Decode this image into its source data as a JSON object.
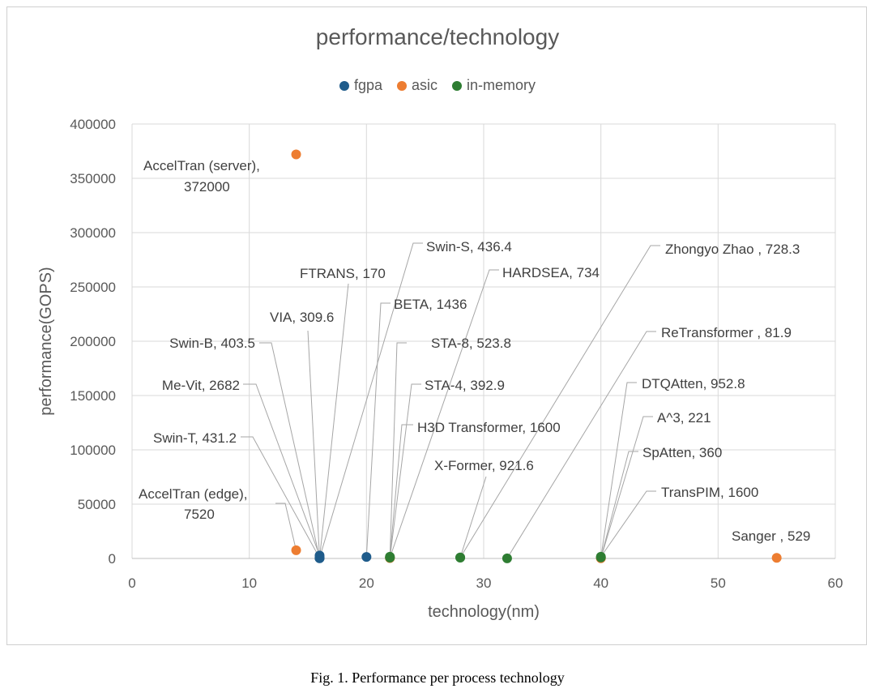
{
  "chart_data": {
    "type": "scatter",
    "title": "performance/technology",
    "xlabel": "technology(nm)",
    "ylabel": "performance(GOPS)",
    "xlim": [
      0,
      60
    ],
    "ylim": [
      0,
      400000
    ],
    "x_ticks": [
      "0",
      "10",
      "20",
      "30",
      "40",
      "50",
      "60"
    ],
    "y_ticks": [
      "0",
      "50000",
      "100000",
      "150000",
      "200000",
      "250000",
      "300000",
      "350000",
      "400000"
    ],
    "grid": true,
    "legend_position": "top",
    "series": [
      {
        "name": "fgpa",
        "color": "#1f5c8b",
        "points": [
          {
            "label": "Swin-B, 403.5",
            "x": 16,
            "y": 403.5
          },
          {
            "label": "Me-Vit, 2682",
            "x": 16,
            "y": 2682
          },
          {
            "label": "Swin-T, 431.2",
            "x": 16,
            "y": 431.2
          },
          {
            "label": "VIA, 309.6",
            "x": 16,
            "y": 309.6
          },
          {
            "label": "FTRANS, 170",
            "x": 16,
            "y": 170
          },
          {
            "label": "Swin-S, 436.4",
            "x": 16,
            "y": 436.4
          },
          {
            "label": "BETA, 1436",
            "x": 20,
            "y": 1436
          }
        ]
      },
      {
        "name": "asic",
        "color": "#ed7d31",
        "points": [
          {
            "label": "AccelTran (server), 372000",
            "x": 14,
            "y": 372000
          },
          {
            "label": "AccelTran (edge), 7520",
            "x": 14,
            "y": 7520
          },
          {
            "label": "STA-8, 523.8",
            "x": 22,
            "y": 523.8
          },
          {
            "label": "STA-4, 392.9",
            "x": 22,
            "y": 392.9
          },
          {
            "label": "Sanger , 529",
            "x": 55,
            "y": 529
          },
          {
            "label": "SpAtten, 360",
            "x": 40,
            "y": 360
          },
          {
            "label": "A^3, 221",
            "x": 40,
            "y": 221
          }
        ]
      },
      {
        "name": "in-memory",
        "color": "#2e7d32",
        "points": [
          {
            "label": "HARDSEA, 734",
            "x": 22,
            "y": 734
          },
          {
            "label": "H3D Transformer, 1600",
            "x": 22,
            "y": 1600
          },
          {
            "label": "X-Former, 921.6",
            "x": 28,
            "y": 921.6
          },
          {
            "label": "Zhongyo Zhao , 728.3",
            "x": 28,
            "y": 728.3
          },
          {
            "label": "ReTransformer , 81.9",
            "x": 32,
            "y": 81.9
          },
          {
            "label": "DTQAtten, 952.8",
            "x": 40,
            "y": 952.8
          },
          {
            "label": "TransPIM, 1600",
            "x": 40,
            "y": 1600
          }
        ]
      }
    ]
  },
  "caption": "Fig. 1.  Performance per process technology"
}
